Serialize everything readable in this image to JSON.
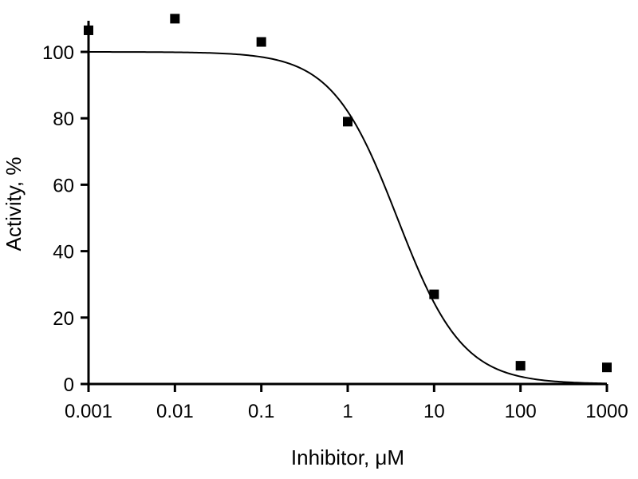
{
  "chart_data": {
    "type": "scatter",
    "title": "",
    "xlabel": "Inhibitor, μM",
    "ylabel": "Activity, %",
    "xscale": "log",
    "xlim": [
      0.001,
      1000
    ],
    "ylim": [
      0,
      110
    ],
    "grid": false,
    "legend": "none",
    "x_ticks": [
      0.001,
      0.01,
      0.1,
      1,
      10,
      100,
      1000
    ],
    "x_tick_labels": [
      "0.001",
      "0.01",
      "0.1",
      "1",
      "10",
      "100",
      "1000"
    ],
    "y_ticks": [
      0,
      20,
      40,
      60,
      80,
      100
    ],
    "y_tick_labels": [
      "0",
      "20",
      "40",
      "60",
      "80",
      "100"
    ],
    "series": [
      {
        "kind": "points",
        "marker": "square",
        "color": "#000000",
        "x": [
          0.001,
          0.01,
          0.1,
          1,
          10,
          100,
          1000
        ],
        "y": [
          106.5,
          110,
          103,
          79,
          27,
          5.5,
          5
        ]
      },
      {
        "kind": "fit-curve",
        "color": "#000000",
        "model": "four-parameter logistic",
        "top": 100,
        "bottom": 0,
        "ic50": 3.75,
        "hill": 1.15
      }
    ]
  }
}
